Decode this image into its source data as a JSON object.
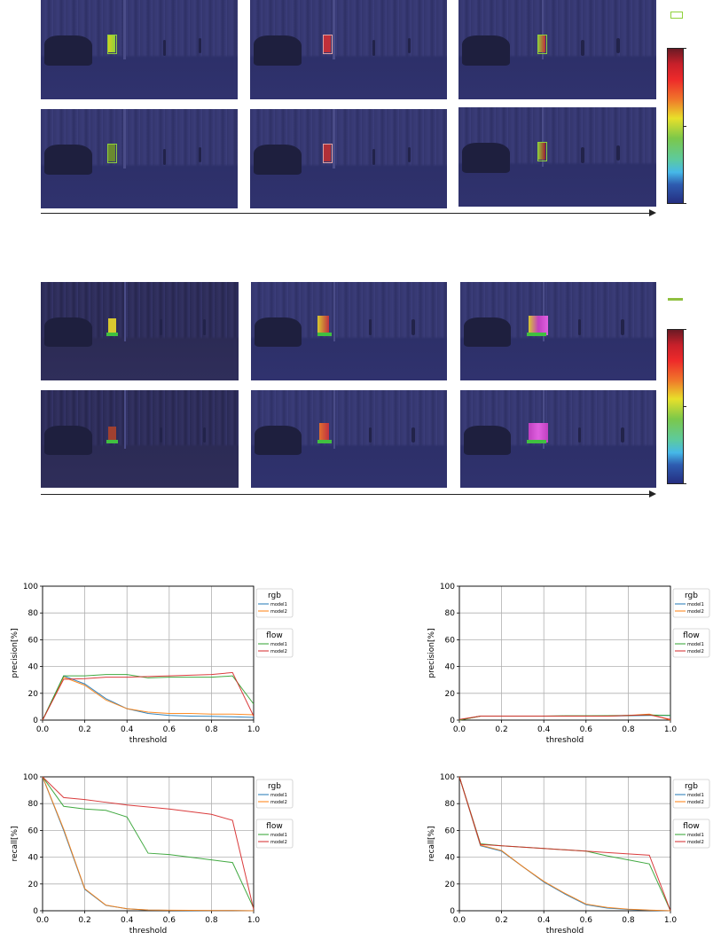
{
  "colors": {
    "rgb_model1": "#1f77b4",
    "rgb_model2": "#ff7f0e",
    "flow_model1": "#2ca02c",
    "flow_model2": "#d62728",
    "bbox": "#8fd13a"
  },
  "legend": {
    "rgb_title": "rgb",
    "flow_title": "flow",
    "model1": "model1",
    "model2": "model2"
  },
  "chart_data": [
    {
      "type": "line",
      "title": "",
      "xlabel": "threshold",
      "ylabel": "precision[%]",
      "xlim": [
        0,
        1
      ],
      "ylim": [
        0,
        100
      ],
      "xticks": [
        "0.0",
        "0.2",
        "0.4",
        "0.6",
        "0.8",
        "1.0"
      ],
      "yticks": [
        "0",
        "20",
        "40",
        "60",
        "80",
        "100"
      ],
      "grid": true,
      "legend_placement": "right",
      "x": [
        0,
        0.1,
        0.2,
        0.3,
        0.4,
        0.5,
        0.6,
        0.7,
        0.8,
        0.9,
        1.0
      ],
      "series": [
        {
          "group": "rgb",
          "name": "model1",
          "values": [
            0,
            33,
            27,
            16,
            8.5,
            5,
            3.5,
            3,
            2.8,
            2.5,
            2
          ]
        },
        {
          "group": "rgb",
          "name": "model2",
          "values": [
            0,
            32,
            26,
            15,
            8.5,
            6,
            5,
            5,
            4.5,
            4.5,
            4
          ]
        },
        {
          "group": "flow",
          "name": "model1",
          "values": [
            0,
            33,
            33,
            34,
            34,
            31.5,
            32,
            32,
            32,
            33,
            12
          ]
        },
        {
          "group": "flow",
          "name": "model2",
          "values": [
            0,
            30.5,
            31,
            32,
            32,
            32.5,
            33,
            33.5,
            34,
            35.5,
            3
          ]
        }
      ]
    },
    {
      "type": "line",
      "title": "",
      "xlabel": "threshold",
      "ylabel": "precision[%]",
      "xlim": [
        0,
        1
      ],
      "ylim": [
        0,
        100
      ],
      "xticks": [
        "0.0",
        "0.2",
        "0.4",
        "0.6",
        "0.8",
        "1.0"
      ],
      "yticks": [
        "0",
        "20",
        "40",
        "60",
        "80",
        "100"
      ],
      "grid": true,
      "legend_placement": "right",
      "x": [
        0,
        0.1,
        0.2,
        0.3,
        0.4,
        0.5,
        0.6,
        0.7,
        0.8,
        0.9,
        1.0
      ],
      "series": [
        {
          "group": "rgb",
          "name": "model1",
          "values": [
            0,
            3,
            3,
            3,
            3,
            3,
            3,
            3,
            3.2,
            3.5,
            3.5
          ]
        },
        {
          "group": "rgb",
          "name": "model2",
          "values": [
            0,
            3,
            3,
            3,
            3,
            3,
            3,
            3,
            3.5,
            4.5,
            0
          ]
        },
        {
          "group": "flow",
          "name": "model1",
          "values": [
            0,
            3,
            3,
            3,
            3,
            3.2,
            3.2,
            3.3,
            3.5,
            3.8,
            3.5
          ]
        },
        {
          "group": "flow",
          "name": "model2",
          "values": [
            0.5,
            3,
            3,
            3,
            3,
            3,
            3,
            3,
            3.5,
            4,
            0.5
          ]
        }
      ]
    },
    {
      "type": "line",
      "title": "",
      "xlabel": "threshold",
      "ylabel": "recall[%]",
      "xlim": [
        0,
        1
      ],
      "ylim": [
        0,
        100
      ],
      "xticks": [
        "0.0",
        "0.2",
        "0.4",
        "0.6",
        "0.8",
        "1.0"
      ],
      "yticks": [
        "0",
        "20",
        "40",
        "60",
        "80",
        "100"
      ],
      "grid": true,
      "legend_placement": "right",
      "x": [
        0,
        0.1,
        0.2,
        0.3,
        0.4,
        0.5,
        0.6,
        0.7,
        0.8,
        0.9,
        1.0
      ],
      "series": [
        {
          "group": "rgb",
          "name": "model1",
          "values": [
            100,
            60,
            16,
            4,
            1.5,
            0.5,
            0.3,
            0.2,
            0.2,
            0.2,
            0
          ]
        },
        {
          "group": "rgb",
          "name": "model2",
          "values": [
            100,
            61,
            16.5,
            4.2,
            1.5,
            0.6,
            0.4,
            0.3,
            0.2,
            0.2,
            0
          ]
        },
        {
          "group": "flow",
          "name": "model1",
          "values": [
            100,
            78,
            76,
            75,
            70,
            43,
            42,
            40,
            38,
            36,
            2
          ]
        },
        {
          "group": "flow",
          "name": "model2",
          "values": [
            100,
            84.5,
            83,
            81,
            79,
            77.5,
            76,
            74,
            72,
            67.5,
            1
          ]
        }
      ]
    },
    {
      "type": "line",
      "title": "",
      "xlabel": "threshold",
      "ylabel": "recall[%]",
      "xlim": [
        0,
        1
      ],
      "ylim": [
        0,
        100
      ],
      "xticks": [
        "0.0",
        "0.2",
        "0.4",
        "0.6",
        "0.8",
        "1.0"
      ],
      "yticks": [
        "0",
        "20",
        "40",
        "60",
        "80",
        "100"
      ],
      "grid": true,
      "legend_placement": "right",
      "x": [
        0,
        0.1,
        0.2,
        0.3,
        0.4,
        0.5,
        0.6,
        0.7,
        0.8,
        0.9,
        1.0
      ],
      "series": [
        {
          "group": "rgb",
          "name": "model1",
          "values": [
            100,
            48.5,
            44.5,
            33,
            21.5,
            12.5,
            4.5,
            2,
            1,
            0.3,
            0
          ]
        },
        {
          "group": "rgb",
          "name": "model2",
          "values": [
            100,
            49,
            45,
            33,
            22,
            13,
            5,
            2.5,
            1.2,
            0.5,
            0
          ]
        },
        {
          "group": "flow",
          "name": "model1",
          "values": [
            100,
            50,
            48.5,
            47.5,
            46.5,
            45.5,
            44.5,
            41,
            38,
            35,
            0
          ]
        },
        {
          "group": "flow",
          "name": "model2",
          "values": [
            100,
            49.5,
            48.5,
            47.5,
            46.5,
            45.5,
            44.5,
            43.5,
            42.5,
            41.5,
            0
          ]
        }
      ]
    }
  ]
}
